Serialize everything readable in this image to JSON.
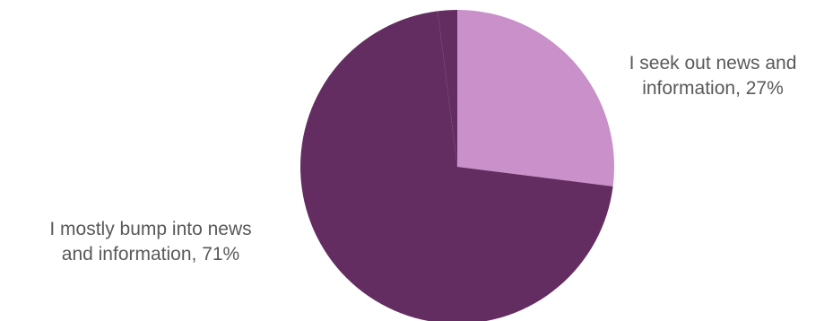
{
  "chart_data": {
    "type": "pie",
    "title": "",
    "slices": [
      {
        "label_line1": "I seek out news and",
        "label_line2": "information, 27%",
        "value": 27,
        "color": "#c990c9"
      },
      {
        "label_line1": "I mostly bump into news",
        "label_line2": "and information, 71%",
        "value": 71,
        "color": "#642d61"
      },
      {
        "label_line1": "",
        "label_line2": "",
        "value": 2,
        "color": "#642d61"
      }
    ],
    "start_angle": "12 o'clock",
    "direction": "clockwise"
  }
}
